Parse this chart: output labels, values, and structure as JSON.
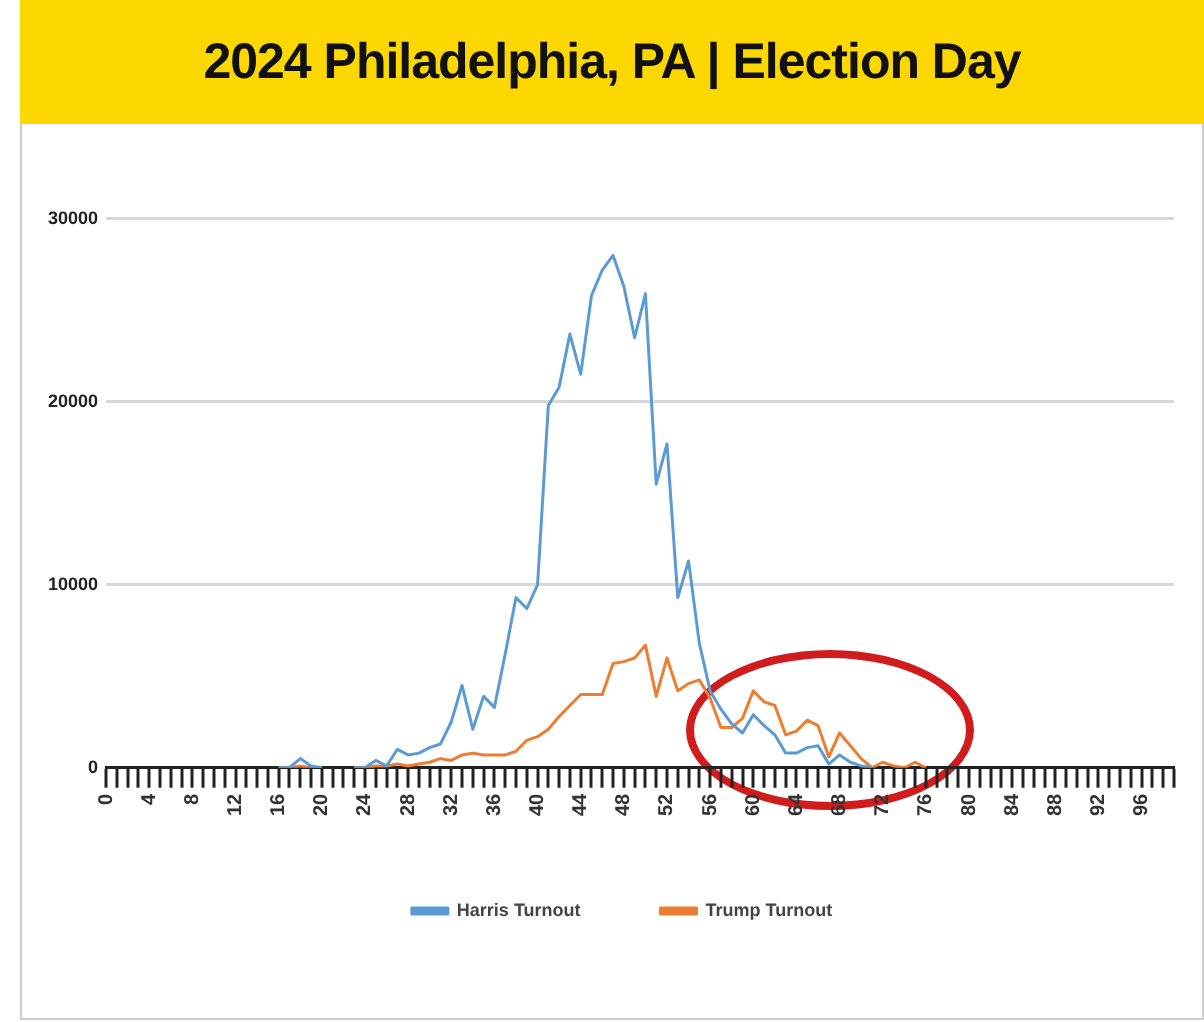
{
  "chart_data": {
    "type": "line",
    "title": "2024 Philadelphia, PA | Election Day",
    "categories": [
      "0",
      null,
      null,
      null,
      "4",
      null,
      null,
      null,
      "8",
      null,
      null,
      null,
      "12",
      null,
      null,
      null,
      "16",
      null,
      null,
      null,
      "20",
      null,
      null,
      null,
      "24",
      null,
      null,
      null,
      "28",
      null,
      null,
      null,
      "32",
      null,
      null,
      null,
      "36",
      null,
      null,
      null,
      "40",
      null,
      null,
      null,
      "44",
      null,
      null,
      null,
      "48",
      null,
      null,
      null,
      "52",
      null,
      null,
      null,
      "56",
      null,
      null,
      null,
      "60",
      null,
      null,
      null,
      "64",
      null,
      null,
      null,
      "68",
      null,
      null,
      null,
      "72",
      null,
      null,
      null,
      "76",
      null,
      null,
      null,
      "80",
      null,
      null,
      null,
      "84",
      null,
      null,
      null,
      "88",
      null,
      null,
      null,
      "92",
      null,
      null,
      null,
      "96",
      null,
      null,
      null
    ],
    "series": [
      {
        "name": "Harris Turnout",
        "color": "#5b9bd5",
        "values": [
          null,
          null,
          null,
          null,
          null,
          null,
          null,
          null,
          null,
          null,
          null,
          null,
          null,
          null,
          null,
          null,
          0,
          0,
          500,
          100,
          0,
          null,
          null,
          0,
          0,
          400,
          100,
          1000,
          700,
          800,
          1100,
          1300,
          2500,
          4500,
          2100,
          3900,
          3300,
          6200,
          9300,
          8700,
          10000,
          19800,
          20800,
          23700,
          21500,
          25800,
          27200,
          28000,
          26300,
          23500,
          25900,
          15500,
          17700,
          9300,
          11300,
          6800,
          4200,
          3200,
          2400,
          1900,
          2900,
          2300,
          1800,
          800,
          800,
          1100,
          1200,
          200,
          700,
          300,
          100,
          0,
          null,
          null,
          null,
          null,
          null,
          null,
          null,
          null,
          null,
          null,
          null,
          null,
          null,
          null,
          null,
          null,
          null,
          null,
          null,
          null,
          null,
          null,
          null,
          null,
          null,
          null,
          null,
          null
        ]
      },
      {
        "name": "Trump Turnout",
        "color": "#ed7d31",
        "values": [
          null,
          null,
          null,
          null,
          null,
          null,
          null,
          null,
          null,
          null,
          null,
          null,
          null,
          null,
          null,
          null,
          0,
          0,
          100,
          0,
          0,
          null,
          null,
          0,
          0,
          100,
          100,
          200,
          100,
          200,
          300,
          500,
          400,
          700,
          800,
          700,
          700,
          700,
          900,
          1500,
          1700,
          2100,
          2800,
          3400,
          4000,
          4000,
          4000,
          5700,
          5800,
          6000,
          6700,
          3900,
          6000,
          4200,
          4600,
          4800,
          3800,
          2200,
          2200,
          2700,
          4200,
          3600,
          3400,
          1800,
          2000,
          2600,
          2300,
          600,
          1900,
          1200,
          500,
          0,
          300,
          100,
          0,
          300,
          0,
          null,
          null,
          null,
          null,
          null,
          null,
          null,
          null,
          null,
          null,
          null,
          null,
          null,
          null,
          null,
          null,
          null,
          null,
          null,
          null,
          null,
          null,
          null
        ]
      }
    ],
    "ylim": [
      0,
      30000
    ],
    "yticks": [
      0,
      10000,
      20000,
      30000
    ],
    "grid": "y",
    "legend": "bottom",
    "marker": "none",
    "line_style": "solid"
  }
}
